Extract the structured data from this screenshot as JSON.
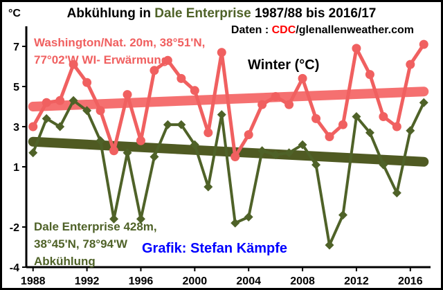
{
  "title": {
    "part1": "Abkühlung in ",
    "part2": "Dale Enterprise",
    "part3": " 1987/88 bis 2016/17"
  },
  "source": {
    "prefix": "Daten : ",
    "cdc": "CDC",
    "rest": "/glenallenweather.com"
  },
  "annotations": {
    "washington_line1": "Washington/Nat. 20m, 38°51'N,",
    "washington_line2": "77°02'W WI- Erwärmung",
    "season": "Winter (°C)",
    "dale_line1": "Dale Enterprise 428m,",
    "dale_line2": "38°45'N, 78°94'W",
    "dale_line3": "Abkühlung",
    "credit": "Grafik: Stefan Kämpfe"
  },
  "colors": {
    "washington": "#f06060",
    "washington_trend": "#f57070",
    "dale": "#4f6228",
    "dale_trend": "#4f5a22",
    "title_green": "#4f6228",
    "cdc_red": "#ff0000",
    "credit_blue": "#0000ff",
    "border": "#000000"
  },
  "chart_data": {
    "type": "line",
    "y_unit_label": "°C",
    "x": [
      1988,
      1989,
      1990,
      1991,
      1992,
      1993,
      1994,
      1995,
      1996,
      1997,
      1998,
      1999,
      2000,
      2001,
      2002,
      2003,
      2004,
      2005,
      2006,
      2007,
      2008,
      2009,
      2010,
      2011,
      2012,
      2013,
      2014,
      2015,
      2016,
      2017
    ],
    "series": [
      {
        "name": "Washington/Nat. 20m, 38°51'N, 77°02'W WI- Erwärmung",
        "values": [
          3.0,
          4.2,
          4.3,
          6.1,
          5.2,
          3.8,
          1.8,
          4.6,
          2.3,
          5.8,
          6.3,
          5.4,
          4.8,
          2.7,
          6.7,
          1.5,
          2.6,
          4.1,
          4.5,
          4.1,
          5.4,
          3.4,
          2.5,
          3.1,
          6.9,
          5.6,
          3.5,
          3.0,
          6.1,
          7.1
        ],
        "trend": [
          4.0,
          4.75
        ]
      },
      {
        "name": "Dale Enterprise 428m, 38°45'N, 78°94'W Abkühlung",
        "values": [
          1.7,
          3.4,
          3.0,
          4.3,
          3.8,
          2.3,
          -1.6,
          1.7,
          -1.6,
          1.5,
          3.1,
          3.1,
          2.1,
          0.0,
          3.6,
          -1.8,
          -1.5,
          1.8,
          1.6,
          1.7,
          2.1,
          1.1,
          -2.9,
          -1.4,
          3.5,
          2.7,
          1.1,
          -0.3,
          2.8,
          4.2
        ],
        "trend": [
          2.25,
          1.25
        ]
      }
    ],
    "xticks": [
      "1988",
      "1992",
      "1996",
      "2000",
      "2004",
      "2008",
      "2012",
      "2016"
    ],
    "yticks": [
      "7",
      "5",
      "3",
      "1",
      "-2",
      "-4"
    ],
    "xlim": [
      1987.5,
      2017.5
    ],
    "ylim": [
      -4,
      8
    ],
    "grid": false,
    "legend": "none"
  }
}
